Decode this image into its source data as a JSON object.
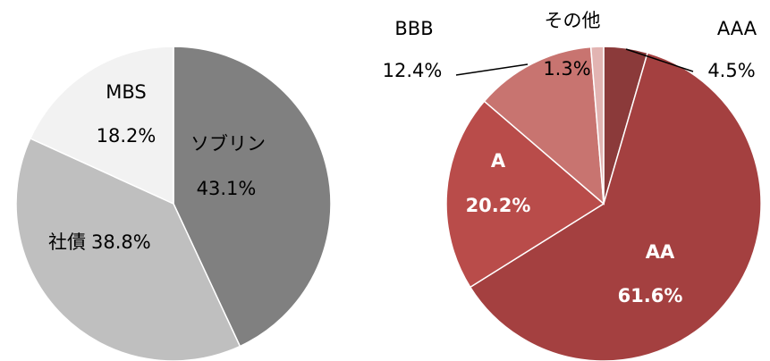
{
  "chart_data": [
    {
      "type": "pie",
      "categories": [
        "ソブリン",
        "社債",
        "MBS"
      ],
      "values": [
        43.1,
        38.8,
        18.2
      ],
      "value_labels": [
        "43.1%",
        "38.8%",
        "18.2%"
      ],
      "colors": [
        "#808080",
        "#bfbfbf",
        "#f2f2f2"
      ]
    },
    {
      "type": "pie",
      "categories": [
        "AAA",
        "AA",
        "A",
        "BBB",
        "その他"
      ],
      "values": [
        4.5,
        61.6,
        20.2,
        12.4,
        1.3
      ],
      "value_labels": [
        "4.5%",
        "61.6%",
        "20.2%",
        "12.4%",
        "1.3%"
      ],
      "colors": [
        "#8b3a3a",
        "#a44040",
        "#b94c4a",
        "#c87470",
        "#e2b4b2"
      ]
    }
  ]
}
